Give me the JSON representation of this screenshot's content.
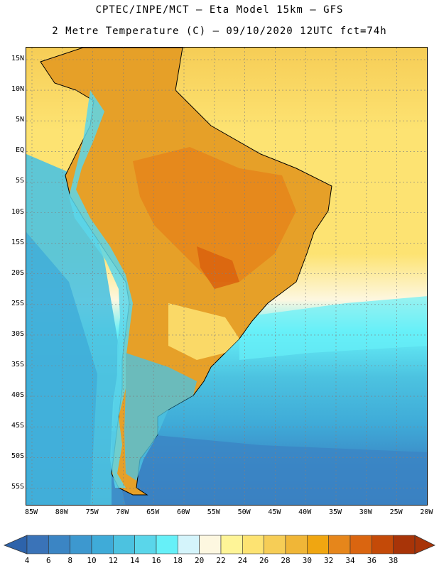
{
  "title_line1": "CPTEC/INPE/MCT –  Eta Model 15km – GFS",
  "title_line2": "2 Metre Temperature (C) – 09/10/2020 12UTC fct=74h",
  "latitude_labels": [
    "15N",
    "10N",
    "5N",
    "EQ",
    "5S",
    "10S",
    "15S",
    "20S",
    "25S",
    "30S",
    "35S",
    "40S",
    "45S",
    "50S",
    "55S"
  ],
  "longitude_labels": [
    "85W",
    "80W",
    "75W",
    "70W",
    "65W",
    "60W",
    "55W",
    "50W",
    "45W",
    "40W",
    "35W",
    "30W",
    "25W",
    "20W"
  ],
  "colorbar": {
    "levels": [
      "4",
      "6",
      "8",
      "10",
      "12",
      "14",
      "16",
      "18",
      "20",
      "22",
      "24",
      "26",
      "28",
      "30",
      "32",
      "34",
      "36",
      "38"
    ],
    "colors": [
      "#3a73b8",
      "#3b85c4",
      "#3d98cf",
      "#3fabd8",
      "#4cc2e0",
      "#5ad6ea",
      "#66f0f8",
      "#d4f4fb",
      "#fdf7e0",
      "#fef497",
      "#fde372",
      "#f6cd56",
      "#f0b637",
      "#f0a611",
      "#e6861b",
      "#da6510",
      "#c44a08",
      "#a83408"
    ],
    "low_arrow_color": "#2d63ab",
    "high_arrow_color": "#a83408"
  }
}
